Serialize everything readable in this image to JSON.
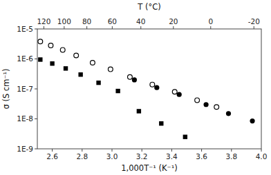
{
  "chart_data": {
    "type": "scatter",
    "log": "y",
    "grid": false,
    "xlabel": "1,000T⁻¹ (K⁻¹)",
    "ylabel": "σ (S cm⁻¹)",
    "x2label": "T (°C)",
    "xlim": [
      2.5,
      4.0
    ],
    "ylim": [
      1e-09,
      1e-05
    ],
    "x2lim": [
      2.5,
      4.0
    ],
    "xticks": [
      2.6,
      2.8,
      {
        "value": 3.0,
        "label": "3.0"
      },
      3.2,
      3.4,
      3.6,
      3.8,
      {
        "value": 4.0,
        "label": "4.0"
      }
    ],
    "yticks": [
      {
        "value": 1e-09,
        "label": "1E-9"
      },
      {
        "value": 1e-08,
        "label": "1E-8"
      },
      {
        "value": 1e-07,
        "label": "1E-7"
      },
      {
        "value": 1e-06,
        "label": "1E-6"
      },
      {
        "value": 1e-05,
        "label": "1E-5"
      }
    ],
    "x2ticks": [
      {
        "value": 2.543558,
        "label": "120"
      },
      {
        "value": 2.679887,
        "label": "100"
      },
      {
        "value": 2.831658,
        "label": "80"
      },
      {
        "value": 3.001651,
        "label": "60"
      },
      {
        "value": 3.193358,
        "label": "40"
      },
      {
        "value": 3.411223,
        "label": "20"
      },
      {
        "value": 3.660992,
        "label": "0"
      },
      {
        "value": 3.950227,
        "label": "-20"
      }
    ],
    "series": [
      {
        "marker": "open-circle",
        "color": "black",
        "x": [
          2.52,
          2.59,
          2.67,
          2.76,
          2.87,
          2.99,
          3.12,
          3.27,
          3.42,
          3.57,
          3.7
        ],
        "values": [
          3.8e-06,
          2.8e-06,
          2e-06,
          1.3e-06,
          7.5e-07,
          4.5e-07,
          2.5e-07,
          1.4e-07,
          8e-08,
          4.2e-08,
          2.5e-08
        ]
      },
      {
        "marker": "square",
        "color": "black",
        "x": [
          2.52,
          2.6,
          2.69,
          2.79,
          2.91,
          3.04,
          3.18,
          3.33,
          3.49
        ],
        "values": [
          9.5e-07,
          7e-07,
          4.8e-07,
          3e-07,
          1.6e-07,
          8.5e-08,
          1.8e-08,
          7e-09,
          2.5e-09
        ]
      },
      {
        "marker": "circle",
        "color": "black",
        "x": [
          3.15,
          3.3,
          3.45,
          3.63,
          3.78,
          3.94
        ],
        "values": [
          2e-07,
          1.1e-07,
          6.5e-08,
          3e-08,
          1.5e-08,
          8.5e-09
        ]
      }
    ]
  }
}
